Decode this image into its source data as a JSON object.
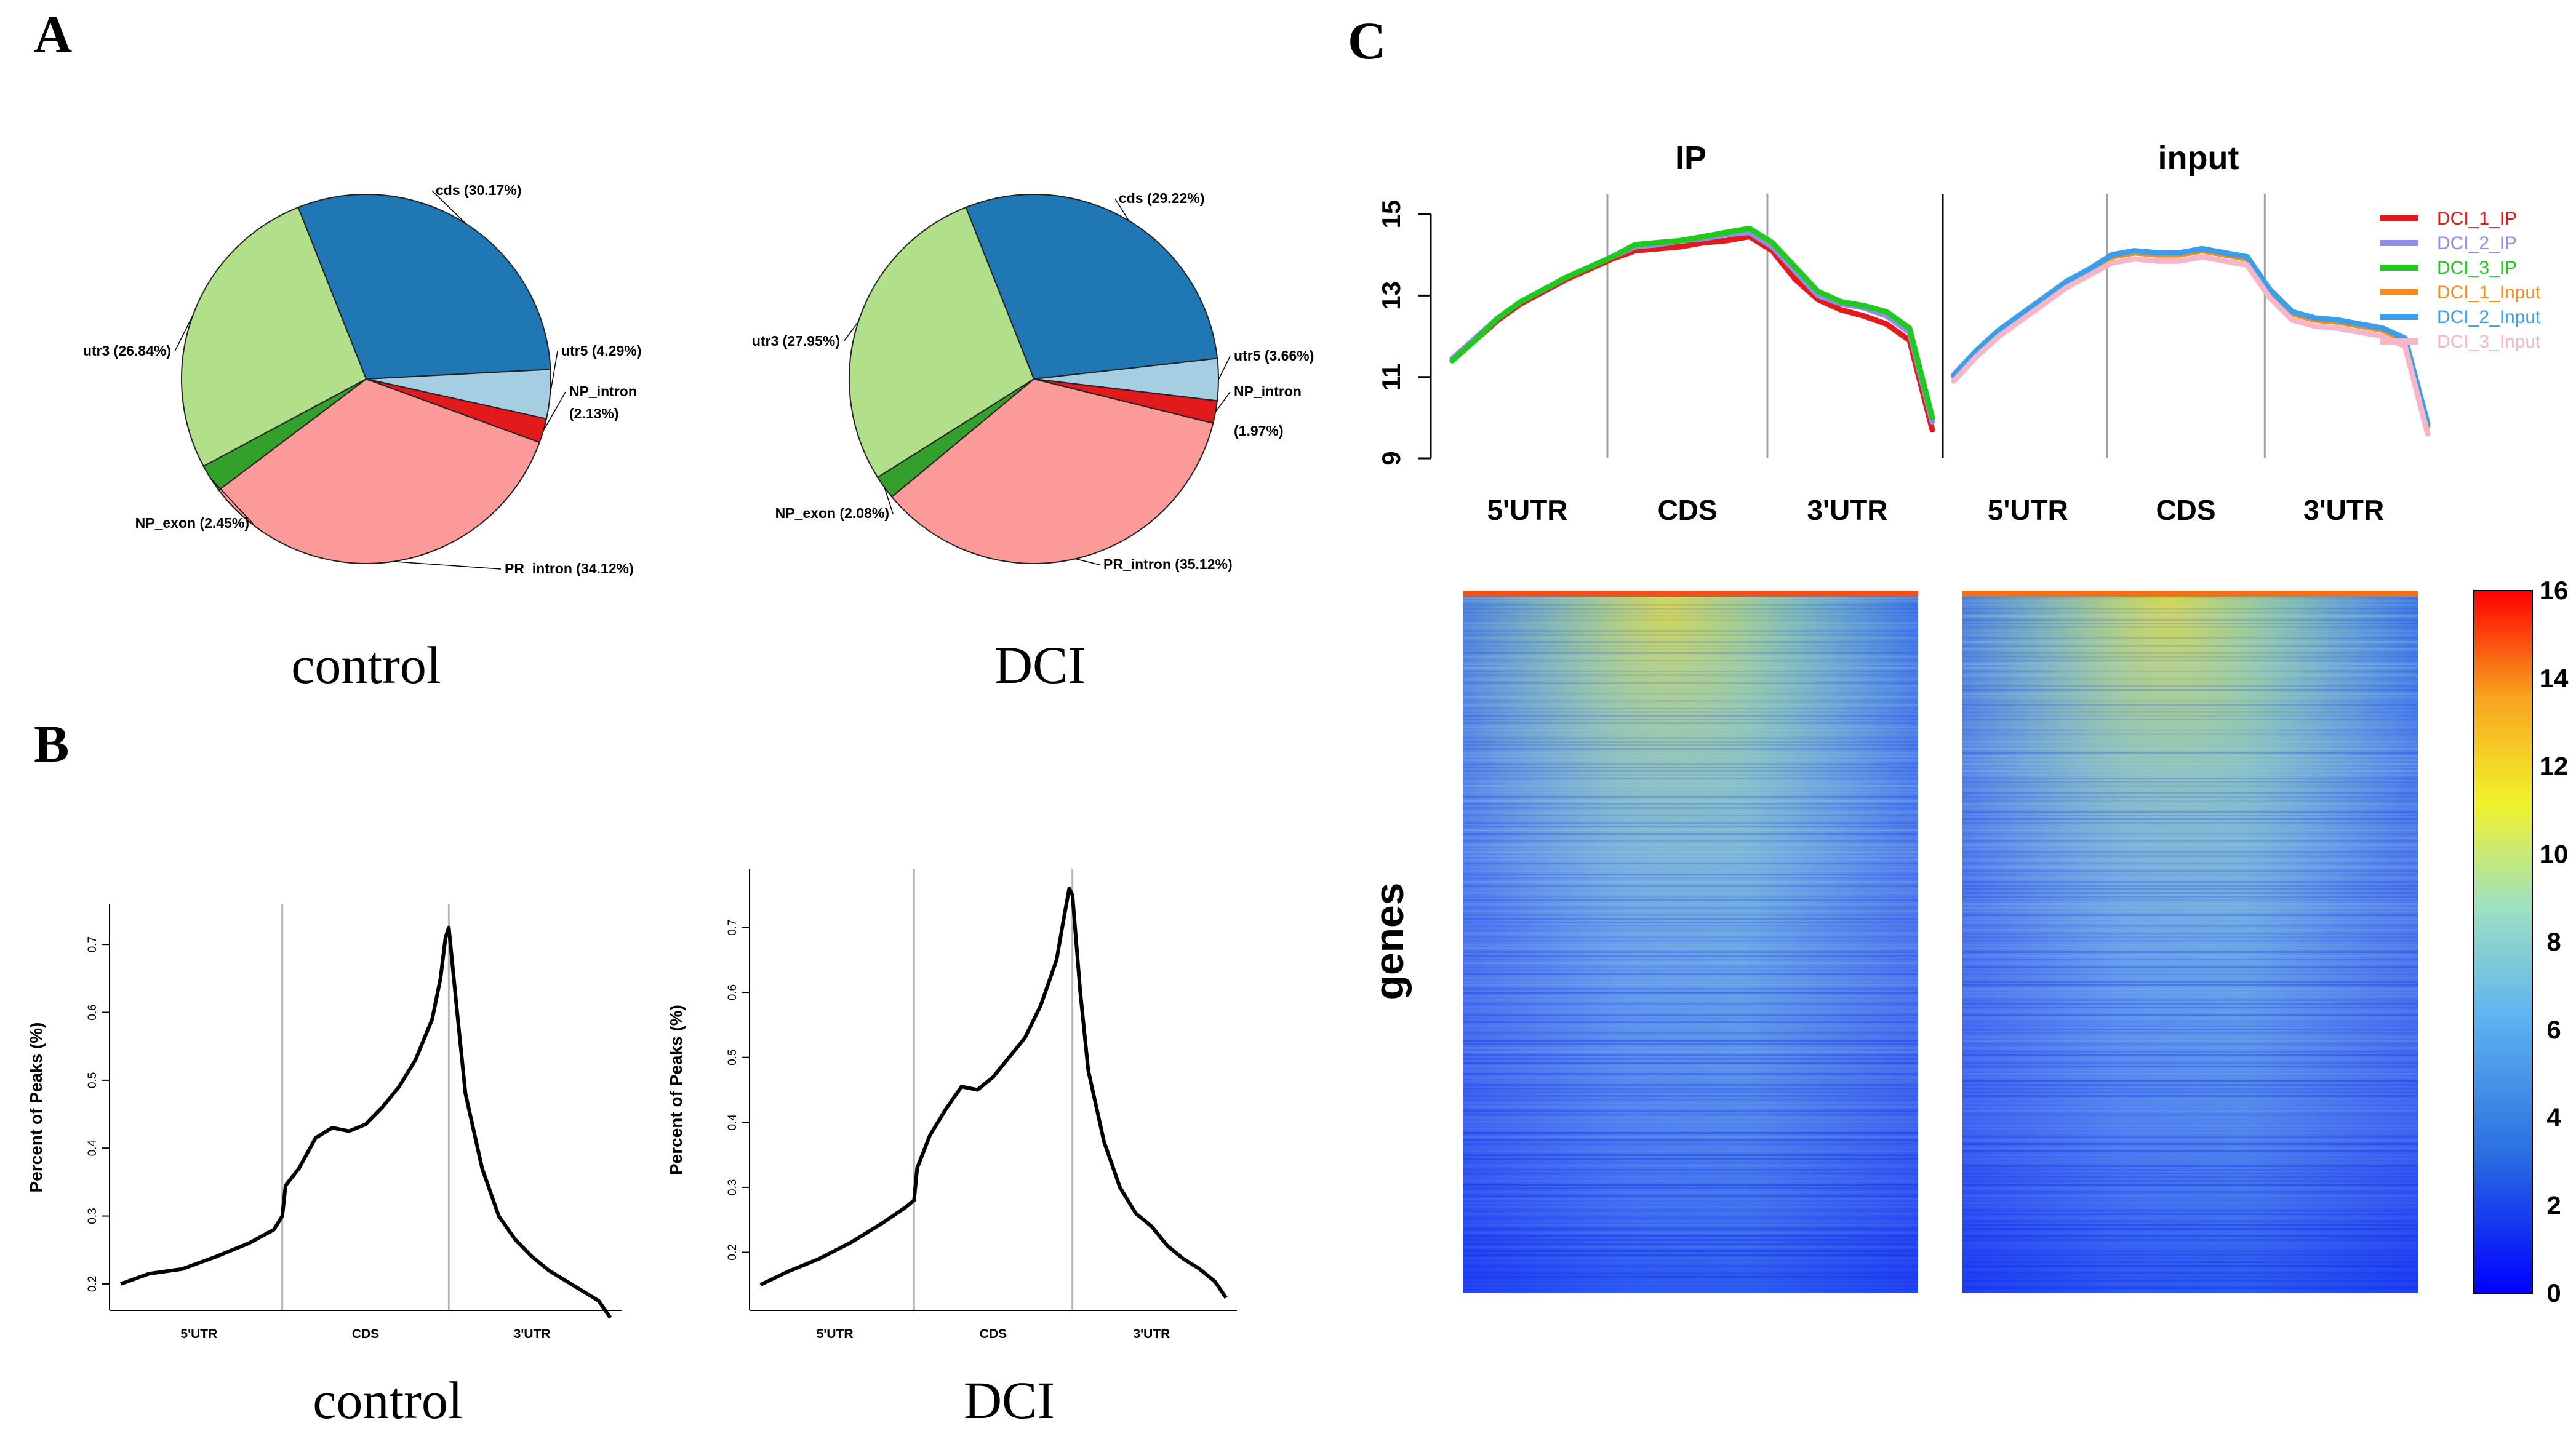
{
  "panels": {
    "A": "A",
    "B": "B",
    "C": "C"
  },
  "colors": {
    "cds": "#1f77b4",
    "utr5": "#a6cee3",
    "NP_intron": "#e31a1c",
    "PR_intron": "#fb9a99",
    "NP_exon": "#33a02c",
    "utr3": "#b2df8a",
    "heat_low": "#0000ff",
    "heat_high": "#ff0000"
  },
  "chart_data": [
    {
      "id": "A-control",
      "type": "pie",
      "caption": "control",
      "slices": [
        {
          "key": "cds",
          "label": "cds (30.17%)",
          "value": 30.17,
          "color": "#1f77b4"
        },
        {
          "key": "utr5",
          "label": "utr5 (4.29%)",
          "value": 4.29,
          "color": "#a6cee3"
        },
        {
          "key": "NP_intron",
          "label": "NP_intron",
          "label2": "(2.13%)",
          "value": 2.13,
          "color": "#e31a1c"
        },
        {
          "key": "PR_intron",
          "label": "PR_intron (34.12%)",
          "value": 34.12,
          "color": "#fb9a99"
        },
        {
          "key": "NP_exon",
          "label": "NP_exon (2.45%)",
          "value": 2.45,
          "color": "#33a02c"
        },
        {
          "key": "utr3",
          "label": "utr3 (26.84%)",
          "value": 26.84,
          "color": "#b2df8a"
        }
      ]
    },
    {
      "id": "A-DCI",
      "type": "pie",
      "caption": "DCI",
      "slices": [
        {
          "key": "cds",
          "label": "cds (29.22%)",
          "value": 29.22,
          "color": "#1f77b4"
        },
        {
          "key": "utr5",
          "label": "utr5 (3.66%)",
          "value": 3.66,
          "color": "#a6cee3"
        },
        {
          "key": "NP_intron",
          "label": "NP_intron",
          "label2": "(1.97%)",
          "value": 1.97,
          "color": "#e31a1c"
        },
        {
          "key": "PR_intron",
          "label": "PR_intron (35.12%)",
          "value": 35.12,
          "color": "#fb9a99"
        },
        {
          "key": "NP_exon",
          "label": "NP_exon (2.08%)",
          "value": 2.08,
          "color": "#33a02c"
        },
        {
          "key": "utr3",
          "label": "utr3 (27.95%)",
          "value": 27.95,
          "color": "#b2df8a"
        }
      ]
    },
    {
      "id": "B-control",
      "type": "line",
      "caption": "control",
      "ylabel": "Percent of Peaks (%)",
      "ylim": [
        0.17,
        0.75
      ],
      "yticks": [
        "0.2",
        "0.3",
        "0.4",
        "0.5",
        "0.6",
        "0.7"
      ],
      "regions": [
        "5'UTR",
        "CDS",
        "3'UTR"
      ],
      "boundaries": [
        1,
        2
      ],
      "x": [
        0.03,
        0.2,
        0.4,
        0.6,
        0.8,
        0.95,
        1.0,
        1.02,
        1.1,
        1.2,
        1.3,
        1.4,
        1.5,
        1.6,
        1.7,
        1.8,
        1.9,
        1.95,
        1.98,
        2.0,
        2.05,
        2.1,
        2.2,
        2.3,
        2.4,
        2.5,
        2.6,
        2.7,
        2.8,
        2.9,
        2.97
      ],
      "y": [
        0.2,
        0.215,
        0.222,
        0.24,
        0.26,
        0.28,
        0.3,
        0.345,
        0.37,
        0.415,
        0.43,
        0.425,
        0.435,
        0.46,
        0.49,
        0.53,
        0.59,
        0.65,
        0.71,
        0.725,
        0.6,
        0.48,
        0.37,
        0.3,
        0.265,
        0.24,
        0.22,
        0.205,
        0.19,
        0.175,
        0.15
      ]
    },
    {
      "id": "B-DCI",
      "type": "line",
      "caption": "DCI",
      "ylabel": "Percent of Peaks (%)",
      "ylim": [
        0.12,
        0.78
      ],
      "yticks": [
        "0.2",
        "0.3",
        "0.4",
        "0.5",
        "0.6",
        "0.7"
      ],
      "regions": [
        "5'UTR",
        "CDS",
        "3'UTR"
      ],
      "boundaries": [
        1,
        2
      ],
      "x": [
        0.03,
        0.2,
        0.4,
        0.6,
        0.8,
        0.95,
        1.0,
        1.02,
        1.1,
        1.2,
        1.3,
        1.4,
        1.5,
        1.6,
        1.7,
        1.8,
        1.9,
        1.95,
        1.98,
        2.0,
        2.05,
        2.1,
        2.2,
        2.3,
        2.4,
        2.5,
        2.6,
        2.7,
        2.8,
        2.9,
        2.97
      ],
      "y": [
        0.15,
        0.17,
        0.19,
        0.215,
        0.245,
        0.27,
        0.28,
        0.33,
        0.38,
        0.42,
        0.455,
        0.45,
        0.47,
        0.5,
        0.53,
        0.58,
        0.65,
        0.72,
        0.76,
        0.75,
        0.6,
        0.48,
        0.37,
        0.3,
        0.26,
        0.24,
        0.21,
        0.19,
        0.175,
        0.155,
        0.13
      ]
    },
    {
      "id": "C-metagene",
      "type": "line",
      "ylim": [
        9,
        15.5
      ],
      "yticks": [
        "9",
        "11",
        "13",
        "15"
      ],
      "regions": [
        "5'UTR",
        "CDS",
        "3'UTR"
      ],
      "panels": [
        {
          "title": "IP",
          "series": [
            {
              "name": "DCI_1_IP",
              "color": "#e31a1c",
              "values": [
                11.4,
                11.9,
                12.4,
                12.8,
                13.1,
                13.4,
                13.65,
                13.9,
                14.1,
                14.15,
                14.2,
                14.3,
                14.35,
                14.45,
                14.1,
                13.4,
                12.9,
                12.65,
                12.5,
                12.3,
                11.9,
                9.7
              ]
            },
            {
              "name": "DCI_2_IP",
              "color": "#8f8fe8",
              "values": [
                11.45,
                11.95,
                12.45,
                12.85,
                13.15,
                13.45,
                13.7,
                13.95,
                14.2,
                14.25,
                14.35,
                14.4,
                14.5,
                14.55,
                14.2,
                13.6,
                13.0,
                12.8,
                12.7,
                12.5,
                12.1,
                9.9
              ]
            },
            {
              "name": "DCI_3_IP",
              "color": "#1fc91f",
              "values": [
                11.4,
                11.9,
                12.45,
                12.85,
                13.15,
                13.45,
                13.7,
                13.95,
                14.25,
                14.3,
                14.35,
                14.45,
                14.55,
                14.65,
                14.3,
                13.7,
                13.1,
                12.85,
                12.75,
                12.6,
                12.2,
                10.0
              ]
            }
          ]
        },
        {
          "title": "input",
          "series": [
            {
              "name": "DCI_1_Input",
              "color": "#f28e1c",
              "values": [
                11.0,
                11.6,
                12.1,
                12.5,
                12.9,
                13.3,
                13.6,
                13.95,
                14.05,
                14.0,
                14.0,
                14.1,
                14.0,
                13.9,
                13.1,
                12.55,
                12.4,
                12.35,
                12.25,
                12.15,
                11.9,
                9.8
              ]
            },
            {
              "name": "DCI_2_Input",
              "color": "#3c9ee8",
              "values": [
                11.05,
                11.65,
                12.15,
                12.55,
                12.95,
                13.35,
                13.65,
                14.0,
                14.1,
                14.05,
                14.05,
                14.15,
                14.05,
                13.95,
                13.15,
                12.6,
                12.45,
                12.4,
                12.3,
                12.2,
                11.95,
                9.85
              ]
            },
            {
              "name": "DCI_3_Input",
              "color": "#f7b6c8",
              "values": [
                10.9,
                11.5,
                12.0,
                12.4,
                12.8,
                13.2,
                13.5,
                13.8,
                13.9,
                13.85,
                13.85,
                13.95,
                13.85,
                13.75,
                12.95,
                12.4,
                12.25,
                12.2,
                12.1,
                12.0,
                11.75,
                9.6
              ]
            }
          ]
        }
      ]
    },
    {
      "id": "C-heatmap",
      "type": "heatmap",
      "ylabel": "genes",
      "panels": [
        "IP",
        "input"
      ],
      "colorbar_ticks": [
        "0",
        "2",
        "4",
        "6",
        "8",
        "10",
        "12",
        "14",
        "16"
      ],
      "range": [
        0,
        16
      ]
    }
  ]
}
